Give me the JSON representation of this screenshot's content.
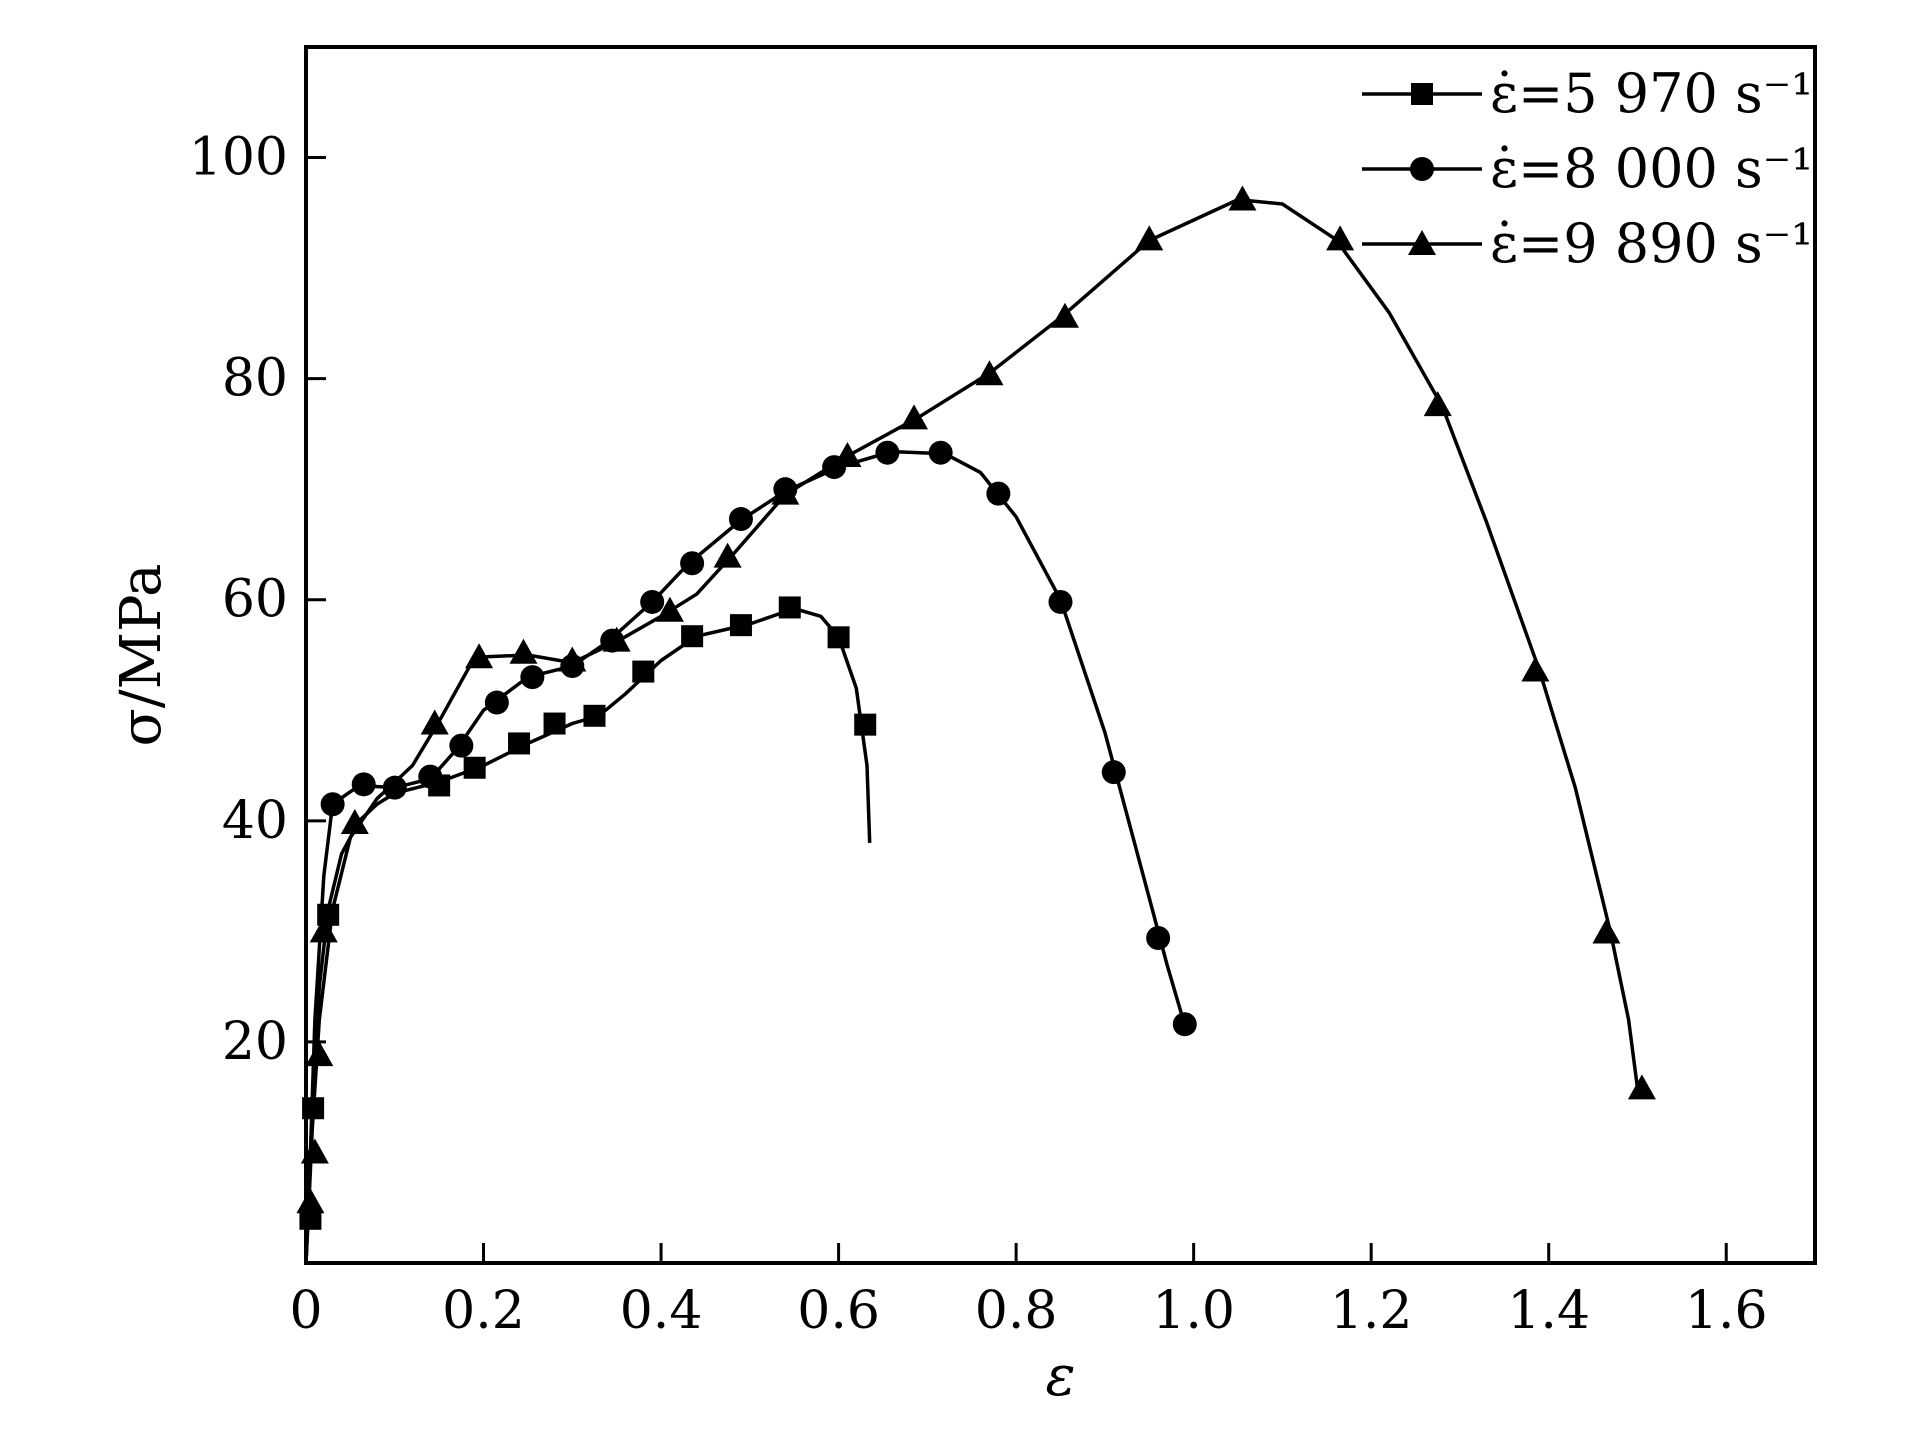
{
  "chart_data": {
    "type": "line",
    "xlabel": "ε",
    "ylabel": "σ/MPa",
    "xlim": [
      0,
      1.7
    ],
    "ylim": [
      0,
      110
    ],
    "x_ticks": [
      "0",
      "0.2",
      "0.4",
      "0.6",
      "0.8",
      "1.0",
      "1.2",
      "1.4",
      "1.6"
    ],
    "y_ticks": [
      "20",
      "40",
      "60",
      "80",
      "100"
    ],
    "grid": false,
    "legend_position": "top-right",
    "series": [
      {
        "name": "ε̇=5 970 s⁻¹",
        "marker": "square",
        "curve": [
          [
            0,
            0
          ],
          [
            0.002,
            4
          ],
          [
            0.005,
            10
          ],
          [
            0.01,
            18
          ],
          [
            0.015,
            25
          ],
          [
            0.025,
            32
          ],
          [
            0.04,
            37
          ],
          [
            0.06,
            40
          ],
          [
            0.08,
            41.5
          ],
          [
            0.1,
            42.5
          ],
          [
            0.15,
            43.5
          ],
          [
            0.2,
            45
          ],
          [
            0.25,
            47
          ],
          [
            0.3,
            48.8
          ],
          [
            0.33,
            49.5
          ],
          [
            0.36,
            51.5
          ],
          [
            0.4,
            54.5
          ],
          [
            0.44,
            56.7
          ],
          [
            0.5,
            57.8
          ],
          [
            0.55,
            59.2
          ],
          [
            0.58,
            58.5
          ],
          [
            0.6,
            56.6
          ],
          [
            0.62,
            52
          ],
          [
            0.632,
            45
          ],
          [
            0.635,
            38
          ]
        ],
        "markers": [
          [
            0.005,
            4
          ],
          [
            0.008,
            14
          ],
          [
            0.025,
            31.5
          ],
          [
            0.15,
            43.2
          ],
          [
            0.19,
            44.8
          ],
          [
            0.24,
            47
          ],
          [
            0.28,
            48.8
          ],
          [
            0.325,
            49.5
          ],
          [
            0.38,
            53.5
          ],
          [
            0.435,
            56.7
          ],
          [
            0.49,
            57.7
          ],
          [
            0.545,
            59.3
          ],
          [
            0.6,
            56.6
          ],
          [
            0.63,
            48.7
          ]
        ]
      },
      {
        "name": "ε̇=8 000 s⁻¹",
        "marker": "circle",
        "curve": [
          [
            0,
            0
          ],
          [
            0.005,
            10
          ],
          [
            0.01,
            22
          ],
          [
            0.02,
            35
          ],
          [
            0.03,
            41.5
          ],
          [
            0.06,
            43.2
          ],
          [
            0.1,
            43
          ],
          [
            0.14,
            43.8
          ],
          [
            0.17,
            46.5
          ],
          [
            0.2,
            50
          ],
          [
            0.25,
            53
          ],
          [
            0.3,
            54
          ],
          [
            0.34,
            56.2
          ],
          [
            0.39,
            59.8
          ],
          [
            0.43,
            63.2
          ],
          [
            0.49,
            67.2
          ],
          [
            0.54,
            69.8
          ],
          [
            0.6,
            72
          ],
          [
            0.66,
            73.4
          ],
          [
            0.72,
            73.2
          ],
          [
            0.76,
            71.5
          ],
          [
            0.8,
            67.5
          ],
          [
            0.85,
            60
          ],
          [
            0.9,
            48
          ],
          [
            0.95,
            33
          ],
          [
            0.97,
            27
          ],
          [
            0.99,
            21.5
          ]
        ],
        "markers": [
          [
            0.03,
            41.5
          ],
          [
            0.065,
            43.3
          ],
          [
            0.1,
            43
          ],
          [
            0.14,
            44
          ],
          [
            0.175,
            46.8
          ],
          [
            0.215,
            50.7
          ],
          [
            0.255,
            53
          ],
          [
            0.3,
            54
          ],
          [
            0.345,
            56.3
          ],
          [
            0.39,
            59.8
          ],
          [
            0.435,
            63.3
          ],
          [
            0.49,
            67.3
          ],
          [
            0.54,
            70
          ],
          [
            0.595,
            72
          ],
          [
            0.655,
            73.3
          ],
          [
            0.715,
            73.3
          ],
          [
            0.78,
            69.6
          ],
          [
            0.85,
            59.8
          ],
          [
            0.91,
            44.4
          ],
          [
            0.96,
            29.4
          ],
          [
            0.99,
            21.6
          ]
        ]
      },
      {
        "name": "ε̇=9 890 s⁻¹",
        "marker": "triangle",
        "curve": [
          [
            0,
            0
          ],
          [
            0.003,
            5
          ],
          [
            0.007,
            12
          ],
          [
            0.015,
            22
          ],
          [
            0.03,
            32
          ],
          [
            0.05,
            38.5
          ],
          [
            0.08,
            42
          ],
          [
            0.12,
            45
          ],
          [
            0.15,
            49
          ],
          [
            0.19,
            54.8
          ],
          [
            0.25,
            55
          ],
          [
            0.3,
            54.3
          ],
          [
            0.35,
            56.2
          ],
          [
            0.4,
            58.5
          ],
          [
            0.44,
            60.5
          ],
          [
            0.48,
            64
          ],
          [
            0.54,
            69.5
          ],
          [
            0.61,
            73
          ],
          [
            0.69,
            76.5
          ],
          [
            0.77,
            80.5
          ],
          [
            0.85,
            85.5
          ],
          [
            0.95,
            92.5
          ],
          [
            1.05,
            96.2
          ],
          [
            1.1,
            95.8
          ],
          [
            1.16,
            92.6
          ],
          [
            1.22,
            86
          ],
          [
            1.28,
            77.5
          ],
          [
            1.33,
            67
          ],
          [
            1.39,
            53.5
          ],
          [
            1.43,
            43
          ],
          [
            1.47,
            29.8
          ],
          [
            1.49,
            22
          ],
          [
            1.5,
            15.8
          ]
        ],
        "markers": [
          [
            0.005,
            5.5
          ],
          [
            0.01,
            10
          ],
          [
            0.015,
            18.8
          ],
          [
            0.02,
            30
          ],
          [
            0.055,
            39.8
          ],
          [
            0.145,
            48.8
          ],
          [
            0.195,
            54.8
          ],
          [
            0.245,
            55.2
          ],
          [
            0.3,
            54.5
          ],
          [
            0.35,
            56.3
          ],
          [
            0.41,
            59
          ],
          [
            0.475,
            63.9
          ],
          [
            0.54,
            69.6
          ],
          [
            0.61,
            73
          ],
          [
            0.685,
            76.4
          ],
          [
            0.77,
            80.4
          ],
          [
            0.855,
            85.6
          ],
          [
            0.95,
            92.6
          ],
          [
            1.055,
            96.2
          ],
          [
            1.165,
            92.6
          ],
          [
            1.275,
            77.6
          ],
          [
            1.385,
            53.6
          ],
          [
            1.465,
            29.9
          ],
          [
            1.505,
            15.8
          ]
        ]
      }
    ]
  }
}
